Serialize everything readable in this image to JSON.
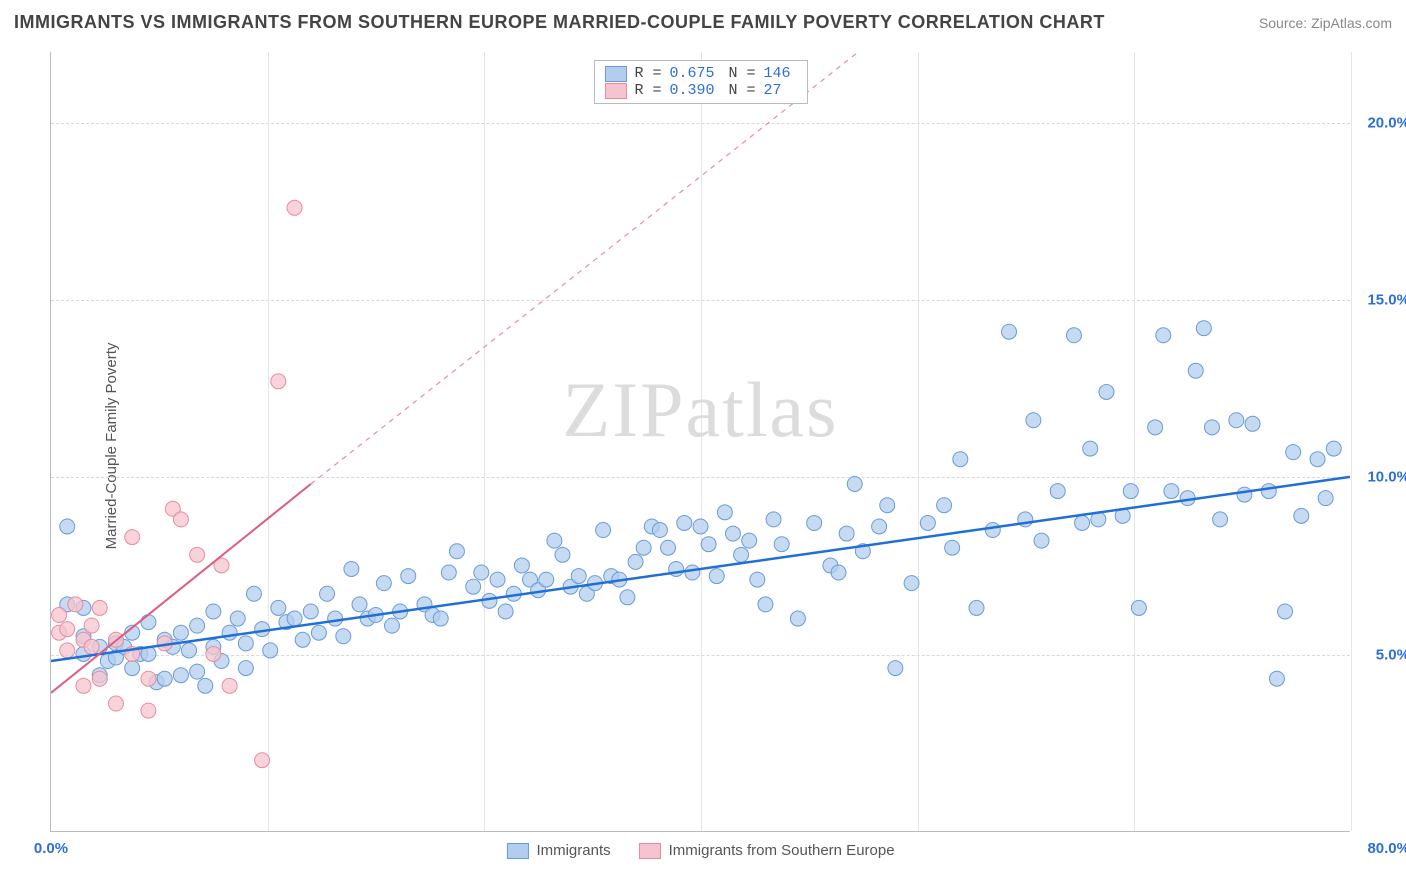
{
  "title": "IMMIGRANTS VS IMMIGRANTS FROM SOUTHERN EUROPE MARRIED-COUPLE FAMILY POVERTY CORRELATION CHART",
  "source": "Source: ZipAtlas.com",
  "ylabel": "Married-Couple Family Poverty",
  "watermark": "ZIPatlas",
  "chart": {
    "type": "scatter",
    "xlim": [
      0,
      80
    ],
    "ylim": [
      0,
      22
    ],
    "x_tick_labels": {
      "left": "0.0%",
      "right": "80.0%"
    },
    "y_ticks": [
      {
        "v": 5,
        "label": "5.0%"
      },
      {
        "v": 10,
        "label": "10.0%"
      },
      {
        "v": 15,
        "label": "15.0%"
      },
      {
        "v": 20,
        "label": "20.0%"
      }
    ],
    "x_grid_positions_pct": [
      16.67,
      33.33,
      50.0,
      66.67,
      83.33,
      100.0
    ],
    "background_color": "#ffffff",
    "grid_color": "#d8d8d8",
    "marker_radius": 7.5,
    "marker_stroke_width": 1,
    "series": [
      {
        "name": "Immigrants",
        "fill": "#b3cdee",
        "stroke": "#6a9bd8",
        "line_color": "#1f6fd6",
        "line_width": 2.5,
        "R": "0.675",
        "N": "146",
        "trend": {
          "x1": 0,
          "y1": 4.8,
          "x2": 80,
          "y2": 10.0,
          "dashed_extend": false
        },
        "points": [
          [
            1,
            8.6
          ],
          [
            1,
            6.4
          ],
          [
            2,
            6.3
          ],
          [
            2,
            5.0
          ],
          [
            2,
            5.5
          ],
          [
            3,
            4.4
          ],
          [
            3,
            5.2
          ],
          [
            3.5,
            4.8
          ],
          [
            4,
            5.3
          ],
          [
            4,
            4.9
          ],
          [
            4.5,
            5.2
          ],
          [
            5,
            5.6
          ],
          [
            5,
            4.6
          ],
          [
            5.5,
            5.0
          ],
          [
            6,
            5.9
          ],
          [
            6,
            5.0
          ],
          [
            6.5,
            4.2
          ],
          [
            7,
            5.4
          ],
          [
            7,
            4.3
          ],
          [
            7.5,
            5.2
          ],
          [
            8,
            4.4
          ],
          [
            8,
            5.6
          ],
          [
            8.5,
            5.1
          ],
          [
            9,
            5.8
          ],
          [
            9,
            4.5
          ],
          [
            9.5,
            4.1
          ],
          [
            10,
            6.2
          ],
          [
            10,
            5.2
          ],
          [
            10.5,
            4.8
          ],
          [
            11,
            5.6
          ],
          [
            11.5,
            6.0
          ],
          [
            12,
            5.3
          ],
          [
            12,
            4.6
          ],
          [
            12.5,
            6.7
          ],
          [
            13,
            5.7
          ],
          [
            13.5,
            5.1
          ],
          [
            14,
            6.3
          ],
          [
            14.5,
            5.9
          ],
          [
            15,
            6.0
          ],
          [
            15.5,
            5.4
          ],
          [
            16,
            6.2
          ],
          [
            16.5,
            5.6
          ],
          [
            17,
            6.7
          ],
          [
            17.5,
            6.0
          ],
          [
            18,
            5.5
          ],
          [
            18.5,
            7.4
          ],
          [
            19,
            6.4
          ],
          [
            19.5,
            6.0
          ],
          [
            20,
            6.1
          ],
          [
            20.5,
            7.0
          ],
          [
            21,
            5.8
          ],
          [
            21.5,
            6.2
          ],
          [
            22,
            7.2
          ],
          [
            23,
            6.4
          ],
          [
            23.5,
            6.1
          ],
          [
            24,
            6.0
          ],
          [
            24.5,
            7.3
          ],
          [
            25,
            7.9
          ],
          [
            26,
            6.9
          ],
          [
            26.5,
            7.3
          ],
          [
            27,
            6.5
          ],
          [
            27.5,
            7.1
          ],
          [
            28,
            6.2
          ],
          [
            28.5,
            6.7
          ],
          [
            29,
            7.5
          ],
          [
            29.5,
            7.1
          ],
          [
            30,
            6.8
          ],
          [
            30.5,
            7.1
          ],
          [
            31,
            8.2
          ],
          [
            31.5,
            7.8
          ],
          [
            32,
            6.9
          ],
          [
            32.5,
            7.2
          ],
          [
            33,
            6.7
          ],
          [
            33.5,
            7.0
          ],
          [
            34,
            8.5
          ],
          [
            34.5,
            7.2
          ],
          [
            35,
            7.1
          ],
          [
            35.5,
            6.6
          ],
          [
            36,
            7.6
          ],
          [
            36.5,
            8.0
          ],
          [
            37,
            8.6
          ],
          [
            37.5,
            8.5
          ],
          [
            38,
            8.0
          ],
          [
            38.5,
            7.4
          ],
          [
            39,
            8.7
          ],
          [
            39.5,
            7.3
          ],
          [
            40,
            8.6
          ],
          [
            40.5,
            8.1
          ],
          [
            41,
            7.2
          ],
          [
            41.5,
            9.0
          ],
          [
            42,
            8.4
          ],
          [
            42.5,
            7.8
          ],
          [
            43,
            8.2
          ],
          [
            43.5,
            7.1
          ],
          [
            44,
            6.4
          ],
          [
            44.5,
            8.8
          ],
          [
            45,
            8.1
          ],
          [
            46,
            6.0
          ],
          [
            47,
            8.7
          ],
          [
            48,
            7.5
          ],
          [
            48.5,
            7.3
          ],
          [
            49,
            8.4
          ],
          [
            49.5,
            9.8
          ],
          [
            50,
            7.9
          ],
          [
            51,
            8.6
          ],
          [
            51.5,
            9.2
          ],
          [
            52,
            4.6
          ],
          [
            53,
            7.0
          ],
          [
            54,
            8.7
          ],
          [
            55,
            9.2
          ],
          [
            55.5,
            8.0
          ],
          [
            56,
            10.5
          ],
          [
            57,
            6.3
          ],
          [
            58,
            8.5
          ],
          [
            59,
            14.1
          ],
          [
            60,
            8.8
          ],
          [
            60.5,
            11.6
          ],
          [
            61,
            8.2
          ],
          [
            62,
            9.6
          ],
          [
            63,
            14.0
          ],
          [
            63.5,
            8.7
          ],
          [
            64,
            10.8
          ],
          [
            64.5,
            8.8
          ],
          [
            65,
            12.4
          ],
          [
            66,
            8.9
          ],
          [
            66.5,
            9.6
          ],
          [
            67,
            6.3
          ],
          [
            68,
            11.4
          ],
          [
            68.5,
            14.0
          ],
          [
            69,
            9.6
          ],
          [
            70,
            9.4
          ],
          [
            70.5,
            13.0
          ],
          [
            71,
            14.2
          ],
          [
            71.5,
            11.4
          ],
          [
            72,
            8.8
          ],
          [
            73,
            11.6
          ],
          [
            73.5,
            9.5
          ],
          [
            74,
            11.5
          ],
          [
            75,
            9.6
          ],
          [
            75.5,
            4.3
          ],
          [
            76,
            6.2
          ],
          [
            76.5,
            10.7
          ],
          [
            77,
            8.9
          ],
          [
            78,
            10.5
          ],
          [
            78.5,
            9.4
          ],
          [
            79,
            10.8
          ]
        ]
      },
      {
        "name": "Immigrants from Southern Europe",
        "fill": "#f5c4ce",
        "stroke": "#e88ba1",
        "line_color": "#e05a80",
        "line_width": 2,
        "R": "0.390",
        "N": "27",
        "trend": {
          "x1": 0,
          "y1": 3.9,
          "x2": 16,
          "y2": 9.8,
          "dashed_extend": true,
          "dx2": 58,
          "dy2": 25
        },
        "points": [
          [
            0.5,
            5.6
          ],
          [
            0.5,
            6.1
          ],
          [
            1,
            5.7
          ],
          [
            1,
            5.1
          ],
          [
            1.5,
            6.4
          ],
          [
            2,
            4.1
          ],
          [
            2,
            5.4
          ],
          [
            2.5,
            5.2
          ],
          [
            2.5,
            5.8
          ],
          [
            3,
            4.3
          ],
          [
            3,
            6.3
          ],
          [
            4,
            5.4
          ],
          [
            4,
            3.6
          ],
          [
            5,
            5.0
          ],
          [
            5,
            8.3
          ],
          [
            6,
            4.3
          ],
          [
            6,
            3.4
          ],
          [
            7,
            5.3
          ],
          [
            7.5,
            9.1
          ],
          [
            8,
            8.8
          ],
          [
            9,
            7.8
          ],
          [
            10,
            5.0
          ],
          [
            10.5,
            7.5
          ],
          [
            11,
            4.1
          ],
          [
            13,
            2.0
          ],
          [
            14,
            12.7
          ],
          [
            15,
            17.6
          ]
        ]
      }
    ]
  },
  "legend_bottom": [
    {
      "label": "Immigrants",
      "fill": "#b3cdee",
      "stroke": "#6a9bd8"
    },
    {
      "label": "Immigrants from Southern Europe",
      "fill": "#f5c4ce",
      "stroke": "#e88ba1"
    }
  ]
}
